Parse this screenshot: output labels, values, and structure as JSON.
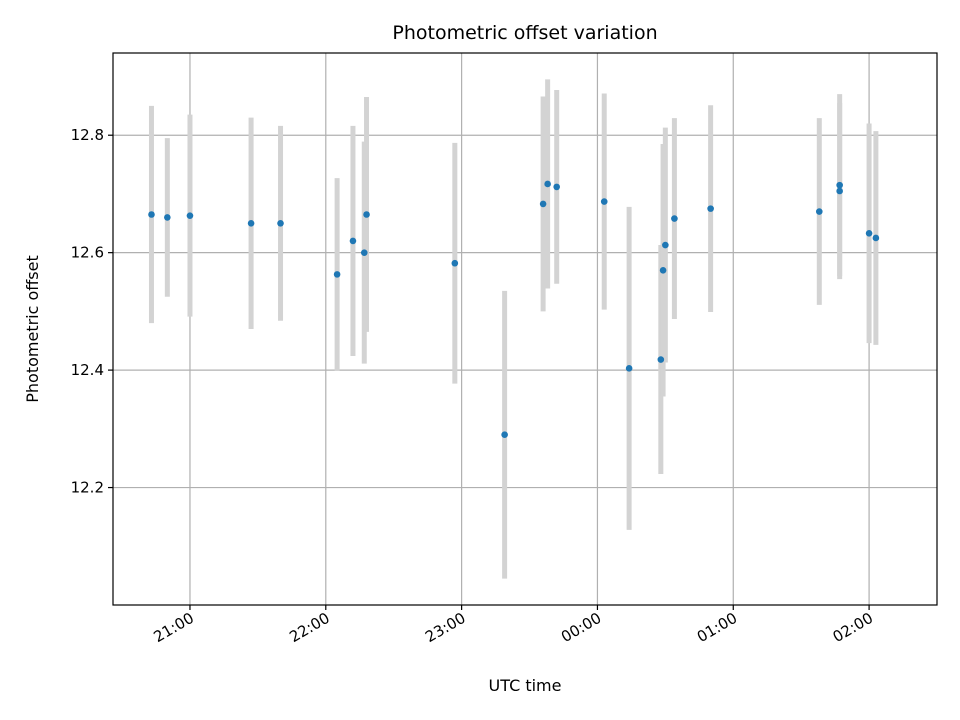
{
  "chart_data": {
    "type": "scatter",
    "title": "Photometric offset variation",
    "xlabel": "UTC time",
    "ylabel": "Photometric offset",
    "x_is_time": true,
    "xlim": [
      "20:26",
      "02:30"
    ],
    "ylim": [
      12.0,
      12.94
    ],
    "x_ticks": [
      "21:00",
      "22:00",
      "23:00",
      "00:00",
      "01:00",
      "02:00"
    ],
    "y_ticks": [
      12.2,
      12.4,
      12.6,
      12.8
    ],
    "grid": true,
    "point_color": "#1f77b4",
    "errorbar_color": "#d3d3d3",
    "points": [
      {
        "t": "20:43",
        "y": 12.665,
        "err": 0.185
      },
      {
        "t": "20:50",
        "y": 12.66,
        "err": 0.135
      },
      {
        "t": "21:00",
        "y": 12.663,
        "err": 0.172
      },
      {
        "t": "21:27",
        "y": 12.65,
        "err": 0.18
      },
      {
        "t": "21:40",
        "y": 12.65,
        "err": 0.166
      },
      {
        "t": "22:05",
        "y": 12.563,
        "err": 0.164
      },
      {
        "t": "22:12",
        "y": 12.62,
        "err": 0.196
      },
      {
        "t": "22:17",
        "y": 12.6,
        "err": 0.189
      },
      {
        "t": "22:18",
        "y": 12.665,
        "err": 0.2
      },
      {
        "t": "22:57",
        "y": 12.582,
        "err": 0.205
      },
      {
        "t": "23:19",
        "y": 12.29,
        "err": 0.245
      },
      {
        "t": "23:36",
        "y": 12.683,
        "err": 0.183
      },
      {
        "t": "23:38",
        "y": 12.717,
        "err": 0.178
      },
      {
        "t": "23:42",
        "y": 12.712,
        "err": 0.165
      },
      {
        "t": "00:03",
        "y": 12.687,
        "err": 0.184
      },
      {
        "t": "00:14",
        "y": 12.403,
        "err": 0.275
      },
      {
        "t": "00:28",
        "y": 12.418,
        "err": 0.195
      },
      {
        "t": "00:29",
        "y": 12.57,
        "err": 0.215
      },
      {
        "t": "00:30",
        "y": 12.613,
        "err": 0.2
      },
      {
        "t": "00:34",
        "y": 12.658,
        "err": 0.171
      },
      {
        "t": "00:50",
        "y": 12.675,
        "err": 0.176
      },
      {
        "t": "01:38",
        "y": 12.67,
        "err": 0.159
      },
      {
        "t": "01:47",
        "y": 12.705,
        "err": 0.15
      },
      {
        "t": "01:47",
        "y": 12.715,
        "err": 0.155
      },
      {
        "t": "02:00",
        "y": 12.633,
        "err": 0.187
      },
      {
        "t": "02:03",
        "y": 12.625,
        "err": 0.182
      }
    ]
  }
}
